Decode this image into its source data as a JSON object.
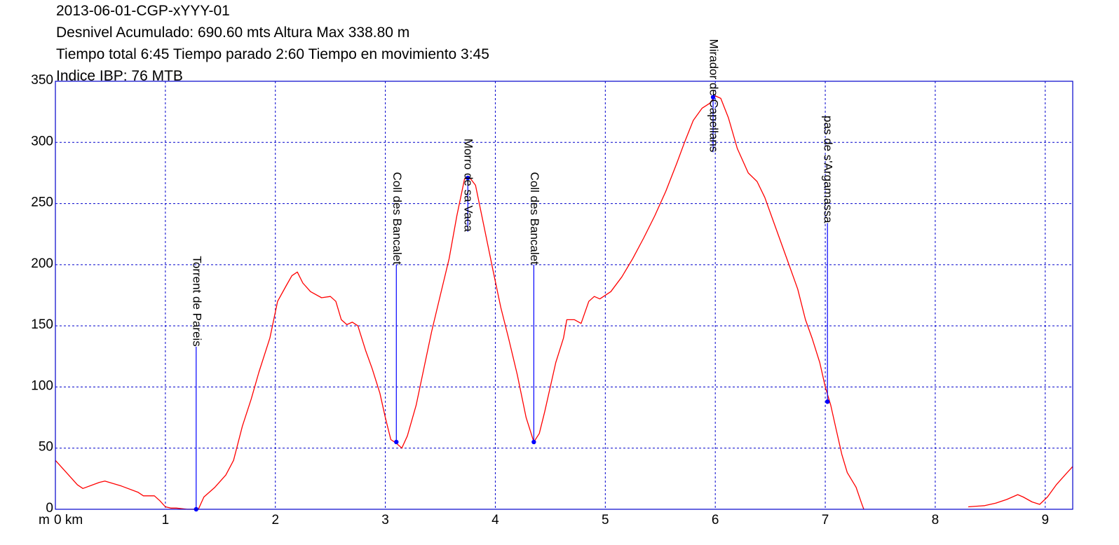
{
  "header": {
    "line1": "2013-06-01-CGP-xYYY-01",
    "line2": "Desnivel Acumulado: 690.60 mts  Altura Max 338.80 m",
    "line3": "Tiempo total 6:45 Tiempo parado 2:60 Tiempo en movimiento 3:45",
    "line4": "Indice IBP: 76 MTB"
  },
  "chart_data": {
    "type": "line",
    "title": "",
    "xlabel": "km",
    "ylabel": "m",
    "xlim": [
      0,
      9.25
    ],
    "ylim": [
      0,
      350
    ],
    "x_ticks": [
      0,
      1,
      2,
      3,
      4,
      5,
      6,
      7,
      8,
      9
    ],
    "x_tick_labels": [
      "0 km",
      "1",
      "2",
      "3",
      "4",
      "5",
      "6",
      "7",
      "8",
      "9"
    ],
    "y_ticks": [
      0,
      50,
      100,
      150,
      200,
      250,
      300,
      350
    ],
    "grid": true,
    "colors": {
      "line": "#ff0000",
      "grid": "#0000cc",
      "frame": "#0000cc",
      "waypoint": "#0000ff"
    },
    "series": [
      {
        "segments": [
          [
            [
              0.0,
              40
            ],
            [
              0.1,
              30
            ],
            [
              0.2,
              20
            ],
            [
              0.25,
              17
            ],
            [
              0.4,
              22
            ],
            [
              0.45,
              23
            ],
            [
              0.6,
              19
            ],
            [
              0.75,
              14
            ],
            [
              0.8,
              11
            ],
            [
              0.9,
              11
            ],
            [
              0.95,
              7
            ],
            [
              1.0,
              2
            ],
            [
              1.05,
              1
            ],
            [
              1.1,
              1
            ],
            [
              1.2,
              0
            ],
            [
              1.25,
              0
            ],
            [
              1.3,
              0
            ],
            [
              1.35,
              10
            ],
            [
              1.45,
              18
            ],
            [
              1.55,
              28
            ],
            [
              1.62,
              40
            ],
            [
              1.7,
              68
            ],
            [
              1.78,
              90
            ],
            [
              1.85,
              112
            ],
            [
              1.95,
              140
            ],
            [
              2.02,
              170
            ],
            [
              2.1,
              183
            ],
            [
              2.15,
              191
            ],
            [
              2.2,
              194
            ],
            [
              2.25,
              185
            ],
            [
              2.32,
              178
            ],
            [
              2.42,
              173
            ],
            [
              2.5,
              174
            ],
            [
              2.55,
              170
            ],
            [
              2.6,
              155
            ],
            [
              2.65,
              151
            ],
            [
              2.7,
              153
            ],
            [
              2.75,
              150
            ],
            [
              2.82,
              130
            ],
            [
              2.88,
              115
            ],
            [
              2.95,
              95
            ],
            [
              3.0,
              75
            ],
            [
              3.05,
              57
            ],
            [
              3.1,
              54
            ],
            [
              3.15,
              50
            ],
            [
              3.2,
              60
            ],
            [
              3.28,
              85
            ],
            [
              3.35,
              115
            ],
            [
              3.42,
              145
            ],
            [
              3.5,
              175
            ],
            [
              3.58,
              205
            ],
            [
              3.65,
              240
            ],
            [
              3.72,
              270
            ],
            [
              3.76,
              272
            ],
            [
              3.82,
              265
            ],
            [
              3.9,
              230
            ],
            [
              3.98,
              195
            ],
            [
              4.05,
              165
            ],
            [
              4.12,
              140
            ],
            [
              4.2,
              110
            ],
            [
              4.28,
              75
            ],
            [
              4.35,
              55
            ],
            [
              4.4,
              62
            ],
            [
              4.45,
              80
            ],
            [
              4.55,
              120
            ],
            [
              4.62,
              140
            ],
            [
              4.65,
              155
            ],
            [
              4.72,
              155
            ],
            [
              4.78,
              152
            ],
            [
              4.85,
              170
            ],
            [
              4.9,
              174
            ],
            [
              4.95,
              172
            ],
            [
              5.05,
              178
            ],
            [
              5.15,
              190
            ],
            [
              5.25,
              205
            ],
            [
              5.35,
              222
            ],
            [
              5.45,
              240
            ],
            [
              5.55,
              260
            ],
            [
              5.65,
              283
            ],
            [
              5.72,
              300
            ],
            [
              5.8,
              318
            ],
            [
              5.88,
              328
            ],
            [
              5.95,
              332
            ],
            [
              6.0,
              338
            ],
            [
              6.05,
              336
            ],
            [
              6.12,
              320
            ],
            [
              6.2,
              295
            ],
            [
              6.3,
              275
            ],
            [
              6.38,
              268
            ],
            [
              6.45,
              255
            ],
            [
              6.55,
              230
            ],
            [
              6.65,
              205
            ],
            [
              6.75,
              180
            ],
            [
              6.82,
              155
            ],
            [
              6.88,
              140
            ],
            [
              6.95,
              120
            ],
            [
              7.0,
              100
            ],
            [
              7.05,
              85
            ],
            [
              7.1,
              65
            ],
            [
              7.15,
              45
            ],
            [
              7.2,
              30
            ],
            [
              7.28,
              18
            ],
            [
              7.33,
              5
            ],
            [
              7.35,
              0
            ]
          ],
          [
            [
              8.3,
              2
            ],
            [
              8.45,
              3
            ],
            [
              8.55,
              5
            ],
            [
              8.65,
              8
            ],
            [
              8.75,
              12
            ],
            [
              8.8,
              10
            ],
            [
              8.88,
              6
            ],
            [
              8.95,
              4
            ],
            [
              9.02,
              10
            ],
            [
              9.1,
              20
            ],
            [
              9.18,
              28
            ],
            [
              9.25,
              35
            ]
          ]
        ]
      }
    ],
    "waypoints": [
      {
        "label": "Torrent de Pareis",
        "x": 1.28,
        "y": 0,
        "label_top": 133
      },
      {
        "label": "Coll des Bancalet",
        "x": 3.1,
        "y": 55,
        "label_top": 200
      },
      {
        "label": "Morro de sa Vaca",
        "x": 3.75,
        "y": 271,
        "label_top": 227
      },
      {
        "label": "Coll des Bancalet",
        "x": 4.35,
        "y": 55,
        "label_top": 200
      },
      {
        "label": "Mirador de Capellans",
        "x": 5.98,
        "y": 337,
        "label_top": 292
      },
      {
        "label": "pas de s'Argamassa",
        "x": 7.02,
        "y": 88,
        "label_top": 234
      }
    ]
  }
}
